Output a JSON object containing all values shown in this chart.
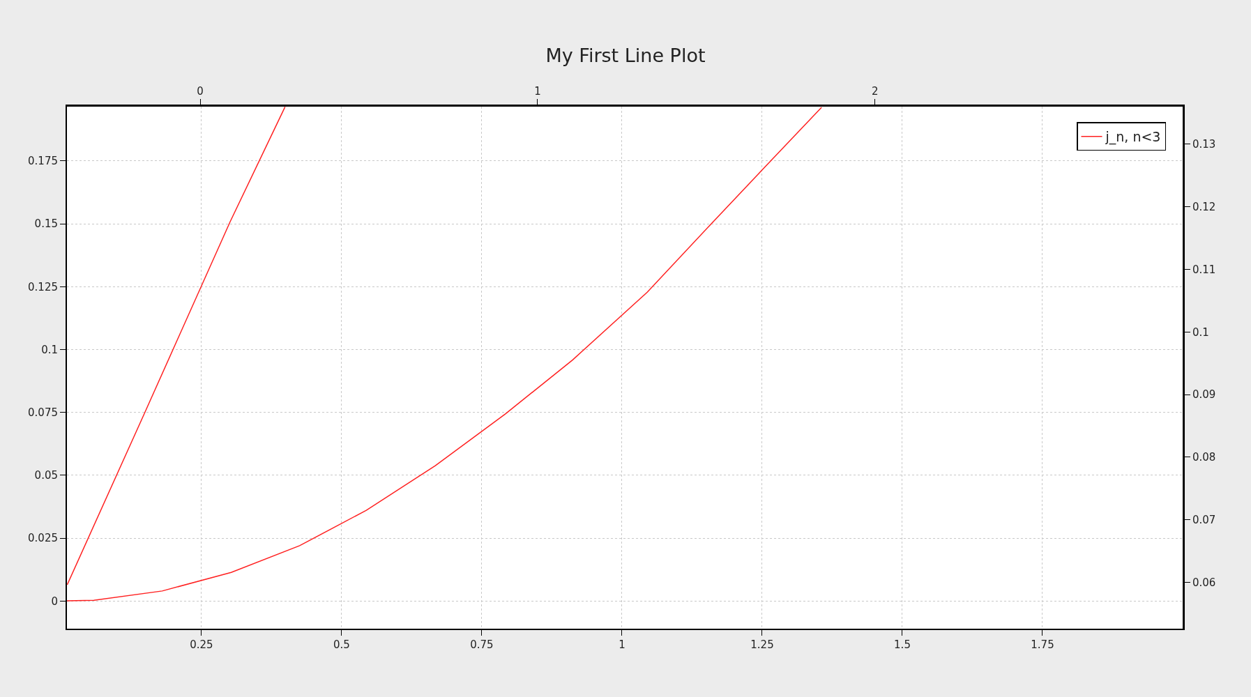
{
  "chart_data": {
    "type": "line",
    "title": "My First Line Plot",
    "series": [
      {
        "name": "j_n, n<3",
        "color": "#ff2020",
        "x": [
          0.01,
          0.058,
          0.18,
          0.303,
          0.425,
          0.544,
          0.667,
          0.792,
          0.912,
          1.045,
          1.157,
          1.255,
          1.356
        ],
        "values": [
          0.0001,
          0.0003,
          0.004,
          0.0114,
          0.022,
          0.0361,
          0.0538,
          0.0744,
          0.0959,
          0.1228,
          0.1495,
          0.1726,
          0.1963
        ]
      },
      {
        "color": "#ff2020",
        "x": [
          0.0105,
          0.148,
          0.301,
          0.399
        ],
        "values": [
          0.0065,
          0.0745,
          0.1508,
          0.1965
        ]
      }
    ],
    "xlim": [
      0.01,
      2.0
    ],
    "xticks": [
      0.25,
      0.5,
      0.75,
      1,
      1.25,
      1.5,
      1.75
    ],
    "ylim": [
      -0.011,
      0.1966
    ],
    "yticks": [
      0,
      0.025,
      0.05,
      0.075,
      0.1,
      0.125,
      0.15,
      0.175
    ],
    "x2lim": [
      -0.395,
      2.912
    ],
    "x2ticks": [
      0,
      1,
      2
    ],
    "y2lim": [
      0.0526,
      0.136
    ],
    "y2ticks": [
      0.06,
      0.07,
      0.08,
      0.09,
      0.1,
      0.11,
      0.12,
      0.13
    ],
    "grid": true,
    "legend": "top right",
    "marker": "none",
    "line_style": "solid"
  }
}
